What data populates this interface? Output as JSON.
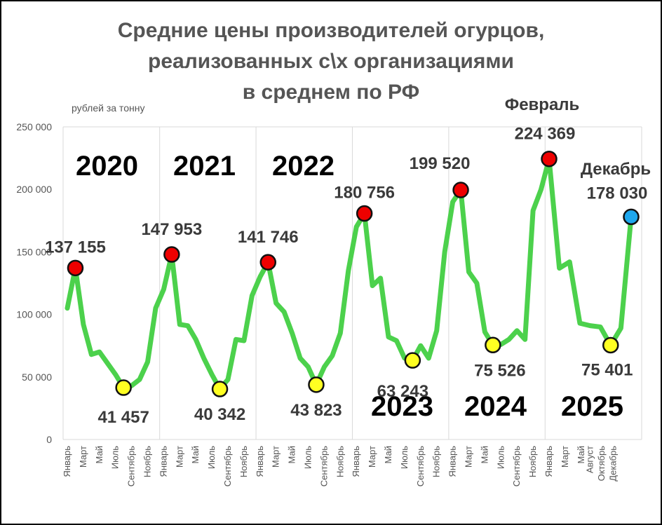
{
  "title_lines": [
    "Средние цены производителей огурцов,",
    "реализованных с\\х организациями",
    "в среднем по РФ"
  ],
  "unit_label": "рублей за тонну",
  "chart_data": {
    "type": "line",
    "ylim": [
      0,
      250000
    ],
    "yticks": [
      "0",
      "50 000",
      "100 000",
      "150 000",
      "200 000",
      "250 000"
    ],
    "grid": "vertical lines between years",
    "line_color": "#4cd14c",
    "years": [
      "2020",
      "2021",
      "2022",
      "2023",
      "2024",
      "2025"
    ],
    "month_labels": [
      "Январь",
      "Март",
      "Май",
      "Июль",
      "Сентябрь",
      "Ноябрь"
    ],
    "month_labels_2025": [
      "Январь",
      "Март",
      "Май",
      "Август",
      "Октябрь",
      "Декабрь"
    ],
    "values": [
      105000,
      137155,
      92000,
      68000,
      70000,
      61000,
      52000,
      41457,
      43000,
      48000,
      62000,
      105000,
      120000,
      147953,
      92000,
      91000,
      80000,
      65000,
      52000,
      40342,
      48000,
      80000,
      79000,
      115000,
      130000,
      141746,
      109000,
      102000,
      85000,
      65000,
      58000,
      43823,
      58000,
      67000,
      85000,
      135000,
      170000,
      180756,
      123000,
      129000,
      82000,
      79000,
      65000,
      63243,
      75000,
      65000,
      87000,
      150000,
      190000,
      199520,
      134000,
      125000,
      86000,
      75526,
      76000,
      80000,
      87000,
      80000,
      183000,
      200000,
      224369,
      137000,
      142000,
      93000,
      91000,
      90000,
      75401,
      89000,
      178030
    ],
    "markers": [
      {
        "index": 1,
        "label": "137 155",
        "color": "#ee0000"
      },
      {
        "index": 7,
        "label": "41 457",
        "color": "#ffff22"
      },
      {
        "index": 13,
        "label": "147 953",
        "color": "#ee0000"
      },
      {
        "index": 19,
        "label": "40 342",
        "color": "#ffff22"
      },
      {
        "index": 25,
        "label": "141 746",
        "color": "#ee0000"
      },
      {
        "index": 31,
        "label": "43 823",
        "color": "#ffff22"
      },
      {
        "index": 37,
        "label": "180 756",
        "color": "#ee0000"
      },
      {
        "index": 43,
        "label": "63 243",
        "color": "#ffff22"
      },
      {
        "index": 49,
        "label": "199 520",
        "color": "#ee0000"
      },
      {
        "index": 53,
        "label": "75 526",
        "color": "#ffff22"
      },
      {
        "index": 60,
        "label": "224 369",
        "color": "#ee0000"
      },
      {
        "index": 66,
        "label": "75 401",
        "color": "#ffff22"
      },
      {
        "index": 68,
        "label": "178 030",
        "color": "#1ea7ee"
      }
    ],
    "annotations": [
      "Февраль",
      "Декабрь"
    ]
  }
}
